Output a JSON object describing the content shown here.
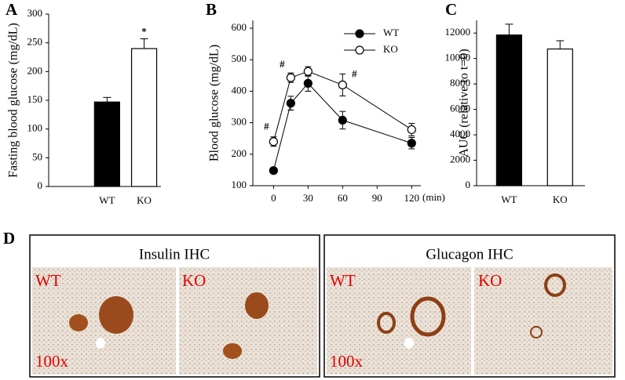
{
  "chart_data": [
    {
      "type": "bar",
      "panel_label": "A",
      "ylabel": "Fasting blood glucose (mg/dL)",
      "categories": [
        "WT",
        "KO"
      ],
      "values": [
        147,
        240
      ],
      "errors": [
        8,
        17
      ],
      "colors": [
        "#000000",
        "#ffffff"
      ],
      "ylim": [
        0,
        300
      ],
      "yticks": [
        0,
        50,
        100,
        150,
        200,
        250,
        300
      ],
      "annotations": [
        {
          "text": "*",
          "category": 1
        }
      ]
    },
    {
      "type": "line",
      "panel_label": "B",
      "ylabel": "Blood glucose (mg/dL)",
      "xlabel": "(min)",
      "x": [
        0,
        15,
        30,
        60,
        120
      ],
      "xlim": [
        -18,
        128
      ],
      "xticks": [
        0,
        30,
        60,
        90,
        120
      ],
      "ylim": [
        100,
        625
      ],
      "yticks": [
        100,
        200,
        300,
        400,
        500,
        600
      ],
      "legend": "upper right",
      "series": [
        {
          "name": "WT",
          "color": "#000000",
          "values": [
            148,
            362,
            425,
            308,
            235
          ],
          "errors": [
            5,
            22,
            25,
            28,
            18
          ]
        },
        {
          "name": "KO",
          "color": "#ffffff",
          "values": [
            240,
            443,
            463,
            420,
            278
          ],
          "errors": [
            15,
            15,
            15,
            35,
            20
          ]
        }
      ],
      "annotations": [
        {
          "text": "#",
          "x": 0
        },
        {
          "text": "#",
          "x": 15
        },
        {
          "text": "#",
          "x": 60
        }
      ]
    },
    {
      "type": "bar",
      "panel_label": "C",
      "ylabel": "AUC (relative to t=0)",
      "categories": [
        "WT",
        "KO"
      ],
      "values": [
        11850,
        10750
      ],
      "errors": [
        850,
        650
      ],
      "colors": [
        "#000000",
        "#ffffff"
      ],
      "ylim": [
        0,
        13000
      ],
      "yticks": [
        0,
        2000,
        4000,
        6000,
        8000,
        10000,
        12000
      ]
    }
  ],
  "figure_panels": {
    "label": "D",
    "panels": [
      {
        "title": "Insulin IHC",
        "images": [
          {
            "label": "WT",
            "magnification": "100x"
          },
          {
            "label": "KO"
          }
        ]
      },
      {
        "title": "Glucagon IHC",
        "images": [
          {
            "label": "WT",
            "magnification": "100x"
          },
          {
            "label": "KO"
          }
        ]
      }
    ]
  }
}
